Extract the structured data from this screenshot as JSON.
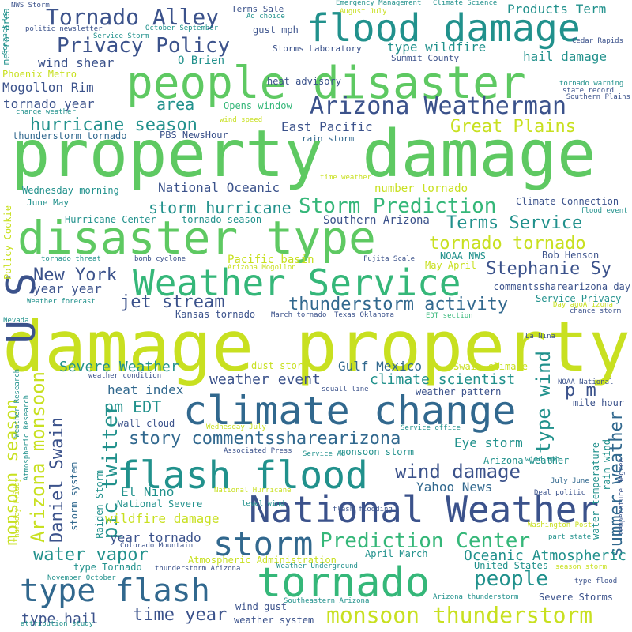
{
  "palette": {
    "background": "#ffffff",
    "darkest": "#440154",
    "indigo": "#3b528b",
    "blue": "#31688e",
    "teal": "#21918c",
    "green": "#35b779",
    "lime": "#5ec962",
    "yellow": "#c8e020"
  },
  "words": [
    "property damage",
    "damage property",
    "people disaster",
    "disaster type",
    "flood damage",
    "Weather Service",
    "climate change",
    "flash flood",
    "National Weather",
    "tornado",
    "storm",
    "type flash",
    "Arizona Weatherman",
    "Tornado Alley",
    "Privacy Policy",
    "Storm Prediction",
    "Prediction Center",
    "monsoon thunderstorm",
    "hurricane season",
    "Great Plains",
    "U S",
    "Stephanie Sy",
    "Terms Service",
    "tornado tornado",
    "thunderstorm activity",
    "jet stream",
    "Arizona monsoon",
    "monsoon season",
    "pic twitter",
    "Daniel Swain",
    "type wind",
    "summer weather",
    "p m",
    "people",
    "wind damage",
    "story commentssharearizona",
    "water vapor",
    "time year",
    "type hail",
    "pm EDT",
    "New York",
    "storm hurricane",
    "Severe Weather",
    "climate scientist",
    "weather event",
    "heat index",
    "Gulf Mexico",
    "Yahoo News",
    "Eye storm",
    "Oceanic Atmospheric",
    "hail damage",
    "Products Term",
    "type wildfire",
    "wind shear",
    "area",
    "tornado year",
    "Mogollon Rim",
    "year year",
    "year tornado",
    "wildfire damage",
    "El Nino",
    "National Oceanic",
    "number tornado",
    "Southern Arizona",
    "Pacific basin",
    "Bob Henson",
    "East Pacific",
    "wind gust",
    "weather system",
    "Kansas tornado",
    "April March",
    "United States",
    "Atmospheric Administration",
    "Severe Storms",
    "Arizona weather",
    "water temperature",
    "O Brien",
    "Phoenix Metro",
    "metro area",
    "NWS Storm",
    "Terms Sale",
    "Ad choice",
    "Emergency Management",
    "August July",
    "Climate Science",
    "politic newsletter",
    "October September",
    "Service Storm",
    "Storms Laboratory",
    "Summit County",
    "heat advisory",
    "gust mph",
    "Cedar Rapids",
    "tornado warning",
    "state record",
    "Southern Plains",
    "change weather",
    "Opens window",
    "wind speed",
    "PBS NewsHour",
    "thunderstorm tornado",
    "rain storm",
    "time weather",
    "June May",
    "Wednesday morning",
    "Hurricane Center",
    "tornado season",
    "Climate Connection",
    "flood event",
    "Policy Cookie",
    "tornado threat",
    "bomb cyclone",
    "Fujita Scale",
    "NOAA NWS",
    "May April",
    "Arizona Mogollon",
    "commentssharearizona day",
    "Service Privacy",
    "Day agoArizona",
    "chance storm",
    "Weather forecast",
    "Nevada",
    "March tornado",
    "Texas Oklahoma",
    "EDT section",
    "La Nina",
    "NOAA National",
    "weather condition",
    "squall line",
    "weather pattern",
    "mile hour",
    "Swain climate",
    "dust storm",
    "Weather Research",
    "Thursday Friday",
    "Atmospheric Research",
    "storm system",
    "Raiden Storm",
    "wall cloud",
    "Wednesday July",
    "Service office",
    "Associated Press",
    "Service Ad",
    "monsoon storm",
    "wind mph",
    "rain wind",
    "temperature degree",
    "Deal politic",
    "July June",
    "flash flooding",
    "National Hurricane",
    "National Severe",
    "level wind",
    "Colorado Mountain",
    "Washington Post",
    "part state",
    "type Tornado",
    "thunderstorm Arizona",
    "Weather Underground",
    "season storm",
    "November October",
    "Southeastern Arizona",
    "Arizona thunderstorm",
    "type flood",
    "attribution study",
    "Contact Us"
  ]
}
